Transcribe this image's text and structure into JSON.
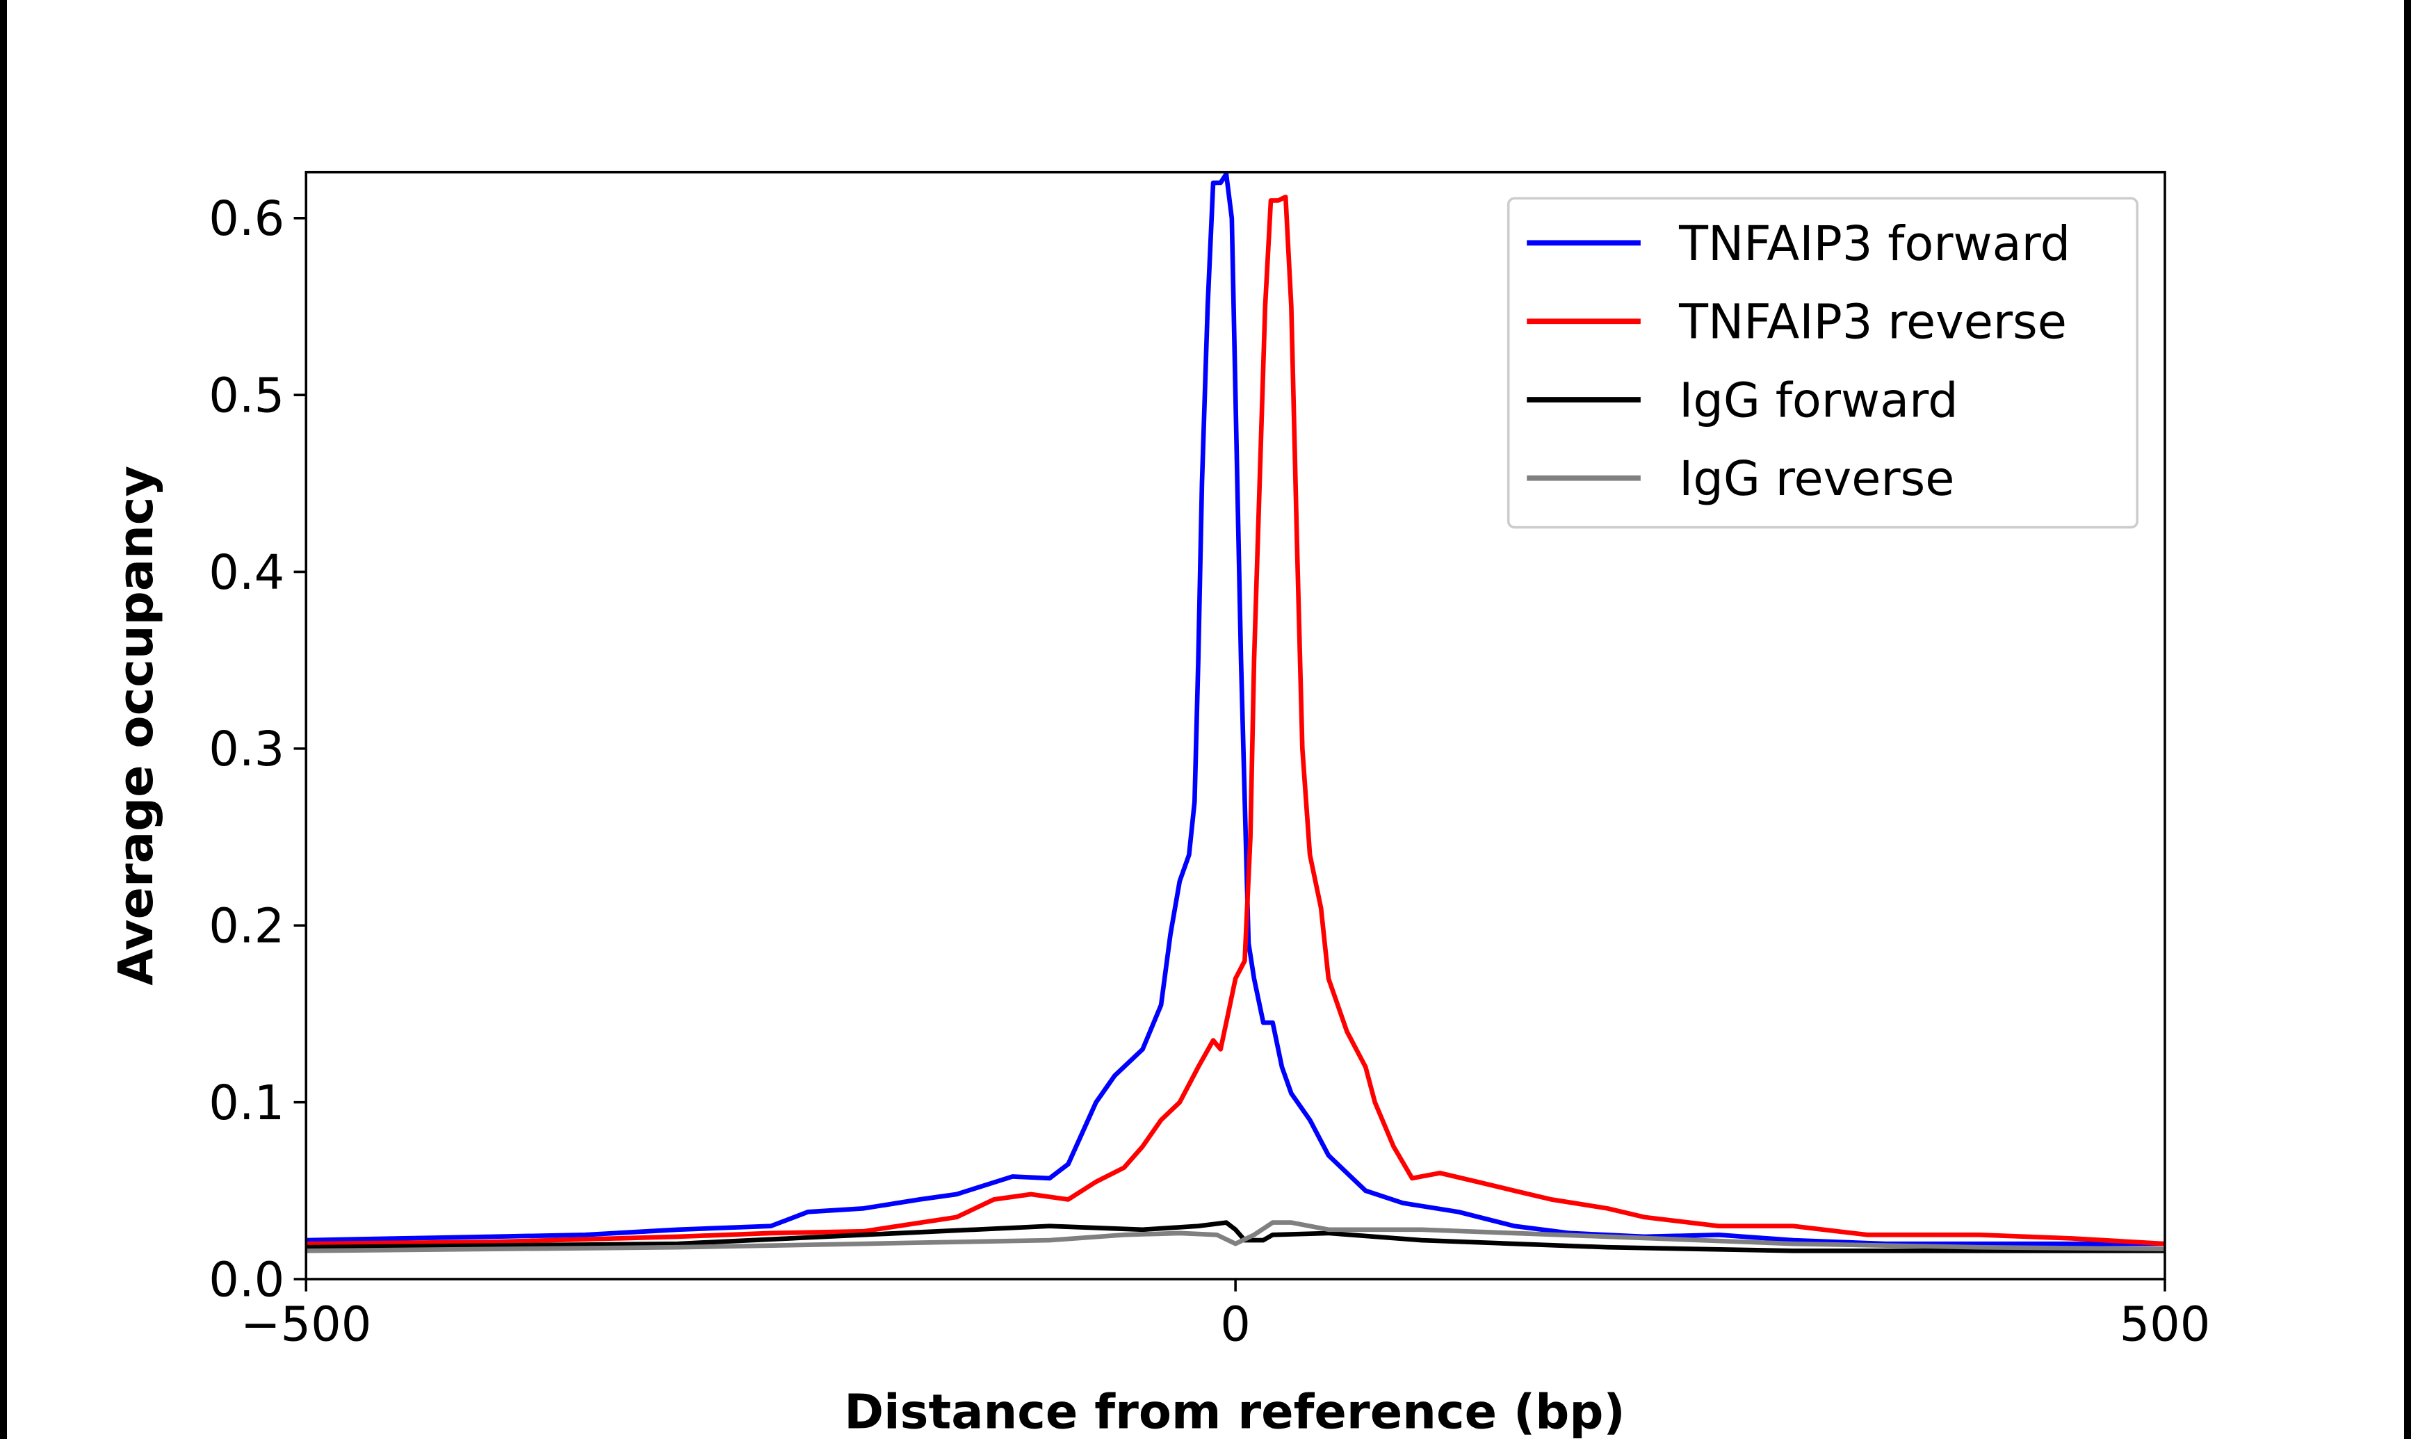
{
  "chart_data": {
    "type": "line",
    "title": "",
    "xlabel": "Distance from reference (bp)",
    "ylabel": "Average occupancy",
    "xlim": [
      -500,
      500
    ],
    "ylim": [
      0,
      0.626
    ],
    "xticks": [
      -500,
      0,
      500
    ],
    "xtick_labels": [
      "−500",
      "0",
      "500"
    ],
    "yticks": [
      0,
      0.1,
      0.2,
      0.3,
      0.4,
      0.5,
      0.6
    ],
    "ytick_labels": [
      "0.0",
      "0.1",
      "0.2",
      "0.3",
      "0.4",
      "0.5",
      "0.6"
    ],
    "grid": false,
    "legend_position": "top-right",
    "series": [
      {
        "name": "TNFAIP3 forward",
        "color": "#0000ff",
        "x": [
          -500,
          -450,
          -400,
          -350,
          -300,
          -250,
          -230,
          -200,
          -170,
          -150,
          -120,
          -100,
          -90,
          -75,
          -65,
          -50,
          -40,
          -35,
          -30,
          -25,
          -22,
          -20,
          -18,
          -15,
          -12,
          -8,
          -5,
          -2,
          0,
          3,
          7,
          10,
          15,
          20,
          25,
          30,
          40,
          50,
          60,
          70,
          90,
          120,
          150,
          180,
          220,
          260,
          300,
          350,
          400,
          450,
          500
        ],
        "y": [
          0.022,
          0.023,
          0.024,
          0.025,
          0.028,
          0.03,
          0.038,
          0.04,
          0.045,
          0.048,
          0.058,
          0.057,
          0.065,
          0.1,
          0.115,
          0.13,
          0.155,
          0.195,
          0.225,
          0.24,
          0.27,
          0.35,
          0.45,
          0.55,
          0.62,
          0.62,
          0.625,
          0.6,
          0.5,
          0.35,
          0.19,
          0.17,
          0.145,
          0.145,
          0.12,
          0.105,
          0.09,
          0.07,
          0.06,
          0.05,
          0.043,
          0.038,
          0.03,
          0.026,
          0.024,
          0.025,
          0.022,
          0.02,
          0.02,
          0.02,
          0.02
        ]
      },
      {
        "name": "TNFAIP3 reverse",
        "color": "#ff0000",
        "x": [
          -500,
          -400,
          -300,
          -250,
          -200,
          -150,
          -130,
          -110,
          -90,
          -75,
          -60,
          -50,
          -40,
          -30,
          -20,
          -12,
          -8,
          -4,
          0,
          5,
          8,
          10,
          13,
          16,
          19,
          23,
          27,
          30,
          33,
          36,
          40,
          46,
          50,
          55,
          60,
          70,
          75,
          85,
          95,
          110,
          130,
          150,
          170,
          200,
          220,
          260,
          300,
          340,
          400,
          450,
          500
        ],
        "y": [
          0.02,
          0.021,
          0.024,
          0.026,
          0.027,
          0.035,
          0.045,
          0.048,
          0.045,
          0.055,
          0.063,
          0.075,
          0.09,
          0.1,
          0.12,
          0.135,
          0.13,
          0.15,
          0.17,
          0.18,
          0.25,
          0.35,
          0.45,
          0.55,
          0.61,
          0.61,
          0.612,
          0.55,
          0.42,
          0.3,
          0.24,
          0.21,
          0.17,
          0.155,
          0.14,
          0.12,
          0.1,
          0.075,
          0.057,
          0.06,
          0.055,
          0.05,
          0.045,
          0.04,
          0.035,
          0.03,
          0.03,
          0.025,
          0.025,
          0.023,
          0.02
        ]
      },
      {
        "name": "IgG forward",
        "color": "#000000",
        "x": [
          -500,
          -300,
          -200,
          -100,
          -50,
          -20,
          -5,
          0,
          5,
          15,
          20,
          50,
          100,
          150,
          200,
          300,
          400,
          500
        ],
        "y": [
          0.018,
          0.02,
          0.025,
          0.03,
          0.028,
          0.03,
          0.032,
          0.028,
          0.022,
          0.022,
          0.025,
          0.026,
          0.022,
          0.02,
          0.018,
          0.016,
          0.016,
          0.016
        ]
      },
      {
        "name": "IgG reverse",
        "color": "#808080",
        "x": [
          -500,
          -300,
          -200,
          -100,
          -60,
          -30,
          -10,
          0,
          10,
          20,
          30,
          50,
          100,
          150,
          200,
          300,
          400,
          500
        ],
        "y": [
          0.016,
          0.018,
          0.02,
          0.022,
          0.025,
          0.026,
          0.025,
          0.02,
          0.025,
          0.032,
          0.032,
          0.028,
          0.028,
          0.026,
          0.024,
          0.02,
          0.018,
          0.017
        ]
      }
    ]
  }
}
